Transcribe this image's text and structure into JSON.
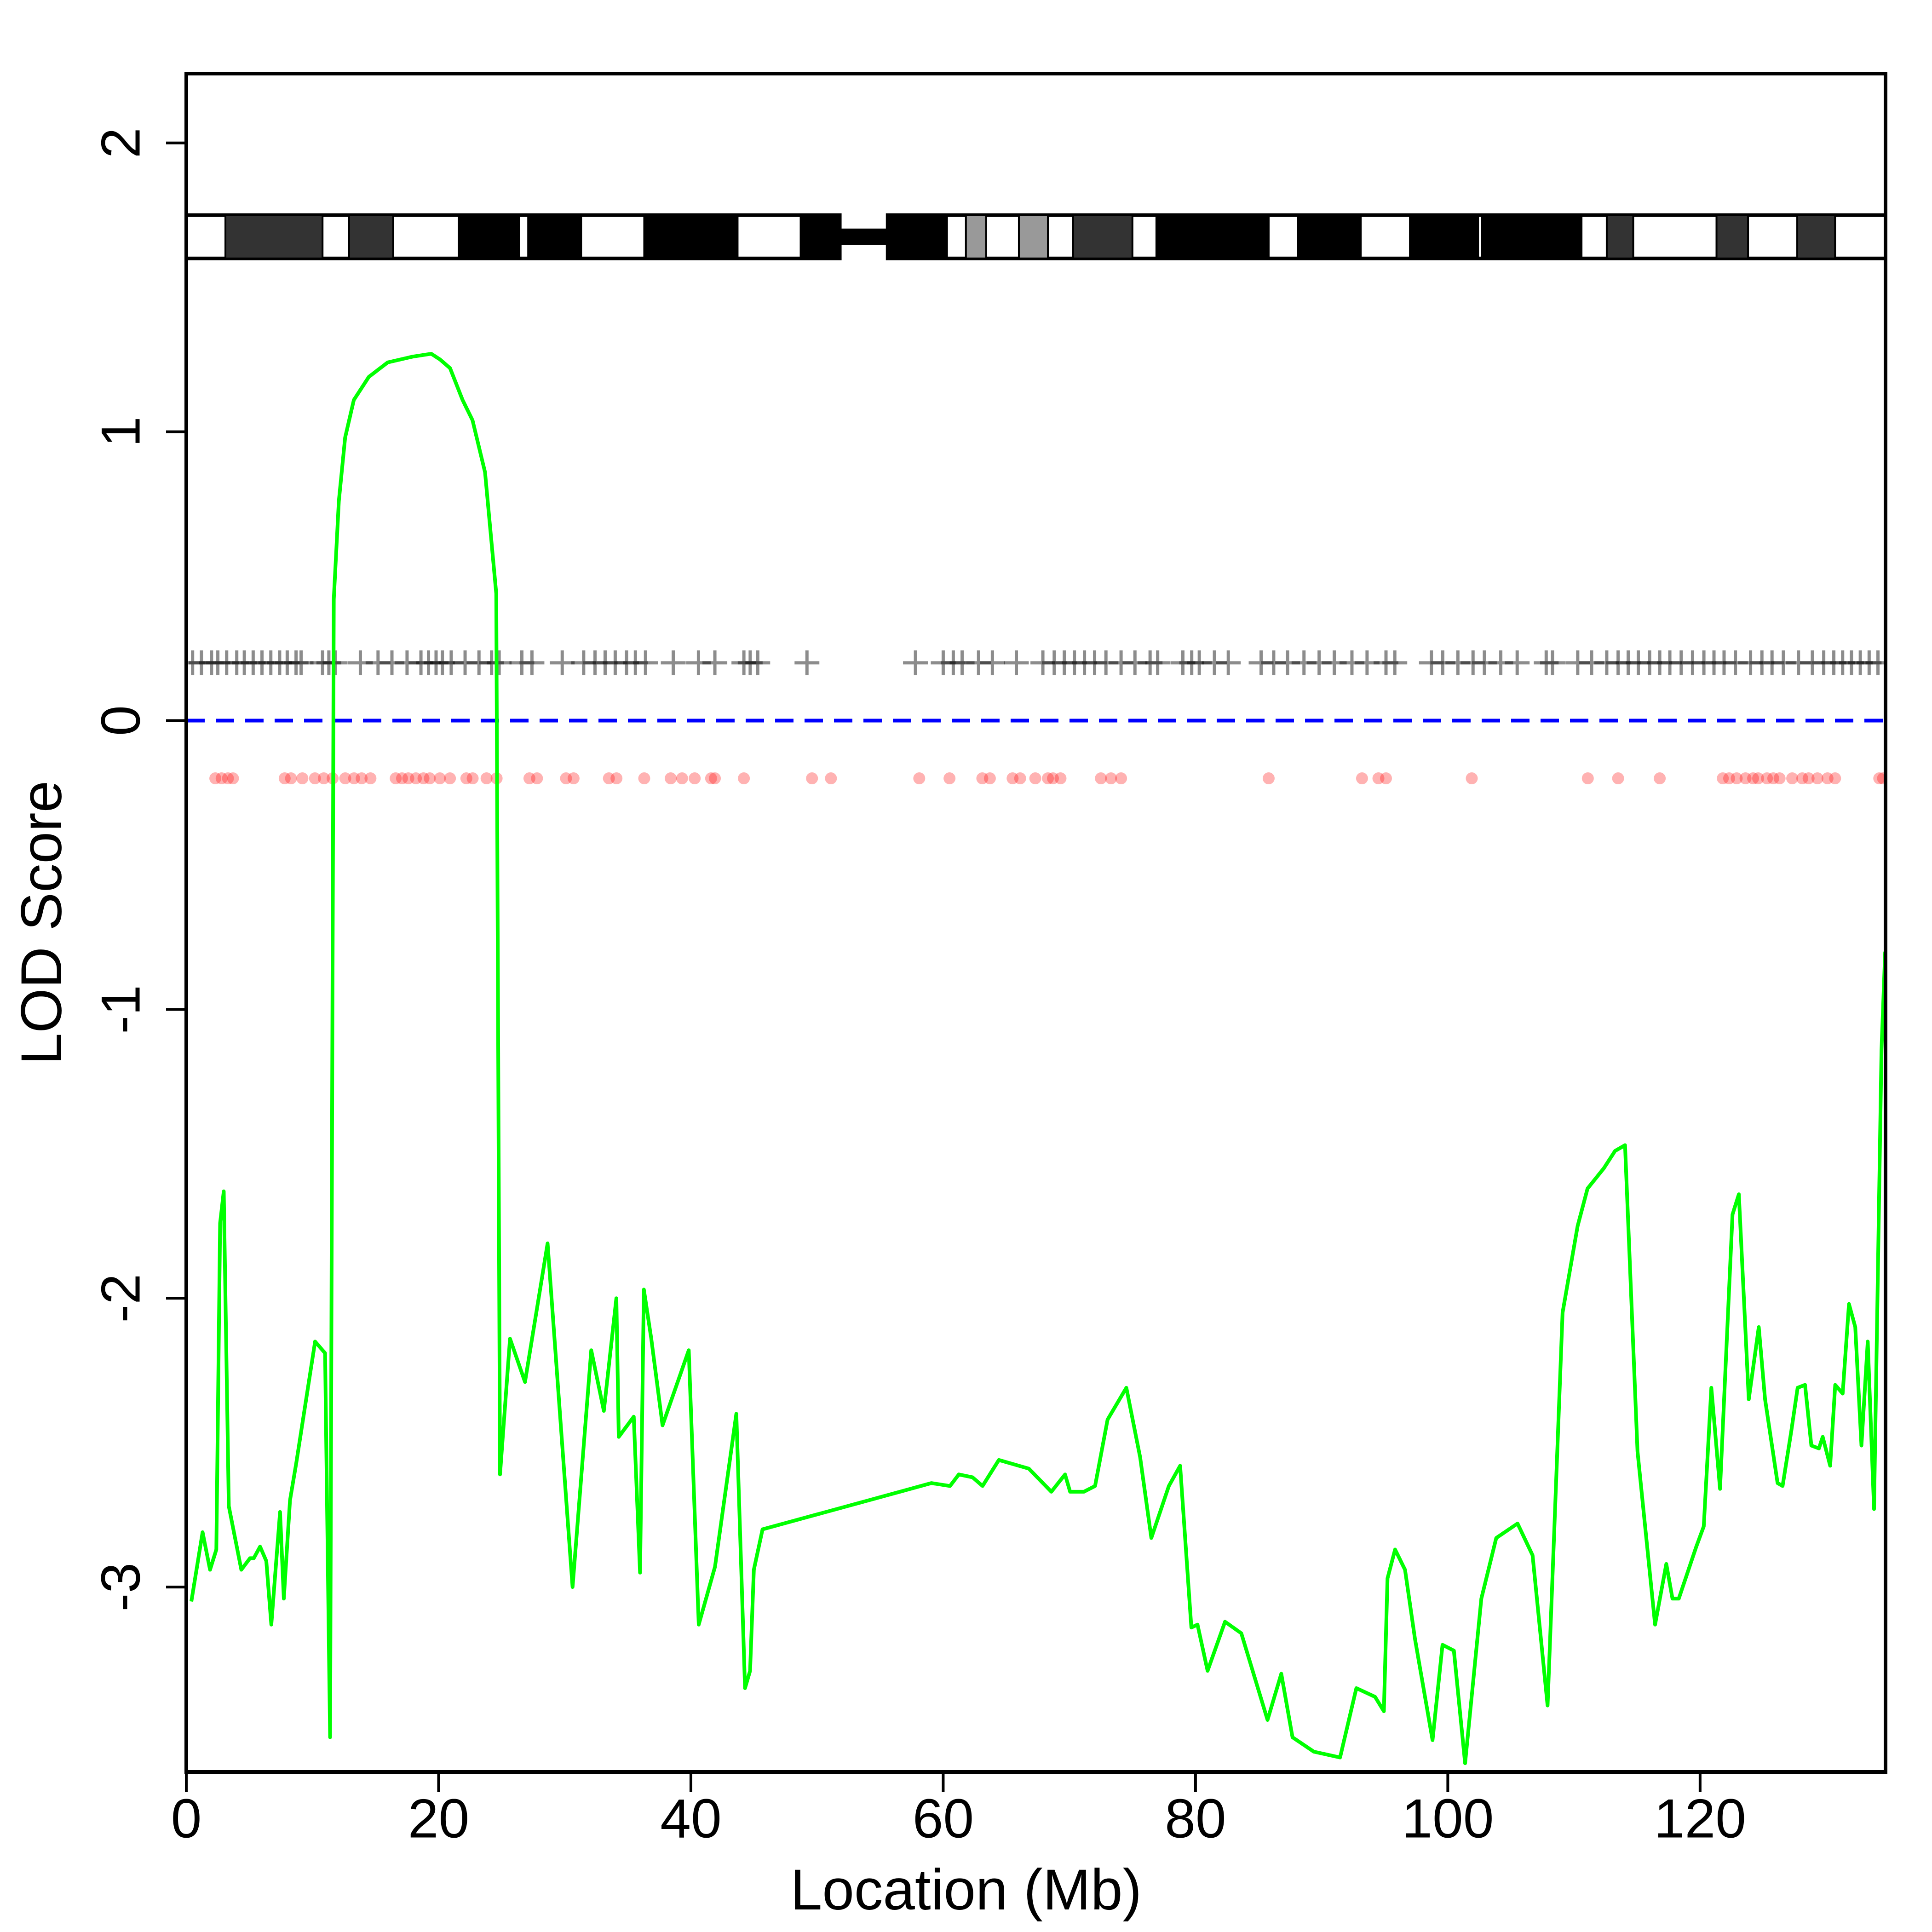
{
  "chart_data": {
    "type": "line",
    "x_label": "Location (Mb)",
    "y_label": "LOD Score",
    "xlim": [
      0,
      134.7
    ],
    "ylim": [
      -3.64,
      2.24
    ],
    "xticks": [
      0,
      20,
      40,
      60,
      80,
      100,
      120
    ],
    "yticks": [
      -3,
      -2,
      -1,
      0,
      1,
      2
    ],
    "reference_line": {
      "y": 0,
      "color": "#0000ff"
    },
    "ideogram": {
      "ylim": [
        1.6,
        1.75
      ],
      "centromere": [
        51.8,
        55.6
      ]
    },
    "bands": [
      {
        "start": 3.1,
        "end": 10.8,
        "color": "#333333"
      },
      {
        "start": 12.9,
        "end": 16.4,
        "color": "#333333"
      },
      {
        "start": 21.6,
        "end": 26.4,
        "color": "#000000"
      },
      {
        "start": 27.1,
        "end": 31.3,
        "color": "#000000"
      },
      {
        "start": 36.3,
        "end": 43.7,
        "color": "#000000"
      },
      {
        "start": 48.7,
        "end": 51.8,
        "color": "#000000"
      },
      {
        "start": 55.6,
        "end": 60.3,
        "color": "#000000"
      },
      {
        "start": 61.8,
        "end": 63.4,
        "color": "#999999"
      },
      {
        "start": 66.0,
        "end": 68.3,
        "color": "#999999"
      },
      {
        "start": 70.3,
        "end": 75.0,
        "color": "#333333"
      },
      {
        "start": 76.9,
        "end": 85.8,
        "color": "#000000"
      },
      {
        "start": 88.1,
        "end": 93.1,
        "color": "#000000"
      },
      {
        "start": 97.0,
        "end": 102.4,
        "color": "#000000"
      },
      {
        "start": 102.7,
        "end": 110.6,
        "color": "#000000"
      },
      {
        "start": 112.6,
        "end": 114.7,
        "color": "#333333"
      },
      {
        "start": 121.3,
        "end": 123.8,
        "color": "#333333"
      },
      {
        "start": 127.7,
        "end": 130.7,
        "color": "#333333"
      }
    ],
    "markers": {
      "y": 0.2,
      "color": "#000000",
      "positions": [
        0.5,
        1.2,
        2,
        2.5,
        3.2,
        4,
        4.6,
        5.3,
        6,
        6.7,
        7.4,
        8,
        8.7,
        9.1,
        10.8,
        11.3,
        11.8,
        13.8,
        15.2,
        16.3,
        17.5,
        18.6,
        19.2,
        19.8,
        20.3,
        21,
        22.1,
        23.2,
        24.2,
        24.8,
        26.6,
        27.4,
        29.8,
        31.5,
        32.4,
        33.2,
        34,
        34.9,
        35.6,
        36.4,
        38.6,
        40.6,
        41.9,
        44.2,
        44.7,
        45.3,
        49.2,
        57.8,
        60,
        60.8,
        61.5,
        62.8,
        63.9,
        65.8,
        67.9,
        68.8,
        69.6,
        70.4,
        71.2,
        72,
        72.9,
        74.1,
        75.2,
        76.4,
        77,
        79,
        79.7,
        80.3,
        81.5,
        82.6,
        85.2,
        86.2,
        87.3,
        88.6,
        89.8,
        91,
        92.4,
        93.6,
        95.1,
        95.8,
        98.7,
        99.6,
        100.8,
        102,
        102.9,
        104.2,
        105.5,
        107.8,
        108.3,
        110.3,
        111.4,
        112.6,
        113.5,
        114.3,
        115.1,
        116,
        116.8,
        117.6,
        118.5,
        119.4,
        120.3,
        121.1,
        121.9,
        122.8,
        124,
        124.9,
        125.7,
        126.6,
        127.8,
        128.9,
        129.8,
        130.6,
        131.3,
        132,
        132.7,
        133.4,
        134.1
      ]
    },
    "snps": {
      "y": -0.2,
      "color": "#ff0000",
      "positions": [
        2.3,
        2.8,
        3.3,
        3.7,
        7.8,
        8.3,
        9.2,
        10.2,
        10.9,
        11.6,
        12.6,
        13.3,
        13.9,
        14.6,
        16.6,
        17.1,
        17.6,
        18.2,
        18.8,
        19.3,
        20.1,
        20.9,
        22.2,
        22.7,
        23.8,
        24.6,
        27.2,
        27.8,
        30.1,
        30.7,
        33.5,
        34.1,
        36.3,
        38.4,
        39.3,
        40.3,
        41.6,
        41.9,
        44.2,
        49.6,
        51.1,
        58.1,
        60.5,
        63.1,
        63.7,
        65.5,
        66.1,
        67.3,
        68.3,
        68.7,
        69.3,
        72.5,
        73.3,
        74.1,
        85.8,
        93.2,
        94.5,
        95.1,
        101.9,
        111.1,
        113.5,
        116.8,
        121.8,
        122.3,
        122.9,
        123.6,
        124.2,
        124.6,
        125.3,
        125.8,
        126.3,
        127.3,
        128.1,
        128.6,
        129.3,
        130.1,
        130.7,
        134.2,
        134.5
      ]
    },
    "x": [
      0.4,
      1.29,
      1.88,
      2.38,
      2.68,
      2.97,
      3.37,
      4.36,
      5.05,
      5.35,
      5.85,
      6.34,
      6.74,
      7.43,
      7.73,
      8.22,
      8.72,
      10.21,
      11.0,
      11.4,
      11.69,
      12.09,
      12.59,
      13.28,
      14.47,
      15.96,
      17.94,
      19.42,
      20.12,
      20.91,
      21.9,
      22.69,
      23.68,
      24.57,
      24.87,
      25.66,
      26.85,
      28.64,
      30.62,
      32.1,
      33.1,
      34.09,
      34.28,
      35.47,
      35.97,
      36.27,
      36.86,
      37.75,
      39.83,
      40.62,
      41.91,
      43.6,
      44.29,
      44.69,
      44.99,
      45.68,
      56.58,
      59.06,
      60.54,
      61.24,
      62.33,
      63.12,
      64.41,
      66.79,
      68.57,
      69.66,
      70.06,
      71.15,
      72.04,
      73.03,
      74.52,
      75.61,
      76.5,
      77.89,
      78.78,
      79.67,
      80.16,
      80.96,
      82.34,
      83.63,
      85.71,
      86.8,
      87.69,
      89.38,
      91.46,
      92.75,
      94.23,
      94.93,
      95.22,
      95.82,
      96.61,
      97.4,
      98.79,
      99.58,
      100.48,
      101.37,
      102.66,
      103.84,
      105.53,
      106.72,
      107.91,
      109.1,
      110.29,
      111.08,
      112.37,
      113.26,
      114.05,
      115.04,
      116.43,
      117.32,
      117.81,
      118.31,
      119.7,
      120.29,
      120.89,
      121.58,
      122.57,
      123.07,
      123.86,
      124.65,
      125.15,
      126.14,
      126.54,
      127.23,
      127.73,
      128.32,
      128.82,
      129.42,
      129.72,
      130.31,
      130.71,
      131.3,
      131.8,
      132.3,
      132.79,
      133.29,
      133.79,
      134.38,
      134.67
    ],
    "series": [
      {
        "color": "#00ff00",
        "values": [
          -3.05,
          -2.81,
          -2.94,
          -2.87,
          -1.74,
          -1.63,
          -2.72,
          -2.94,
          -2.9,
          -2.9,
          -2.86,
          -2.91,
          -3.13,
          -2.74,
          -3.04,
          -2.7,
          -2.57,
          -2.15,
          -2.19,
          -3.52,
          0.42,
          0.76,
          0.98,
          1.11,
          1.19,
          1.24,
          1.26,
          1.27,
          1.25,
          1.22,
          1.11,
          1.04,
          0.86,
          0.44,
          -2.61,
          -2.14,
          -2.29,
          -1.81,
          -3.0,
          -2.18,
          -2.39,
          -2.0,
          -2.48,
          -2.41,
          -2.95,
          -1.97,
          -2.14,
          -2.44,
          -2.18,
          -3.13,
          -2.93,
          -2.4,
          -3.35,
          -3.29,
          -2.94,
          -2.8,
          -2.67,
          -2.64,
          -2.65,
          -2.61,
          -2.62,
          -2.65,
          -2.56,
          -2.59,
          -2.67,
          -2.61,
          -2.67,
          -2.67,
          -2.65,
          -2.42,
          -2.31,
          -2.55,
          -2.83,
          -2.65,
          -2.58,
          -3.14,
          -3.13,
          -3.29,
          -3.12,
          -3.16,
          -3.46,
          -3.3,
          -3.52,
          -3.57,
          -3.59,
          -3.35,
          -3.38,
          -3.43,
          -2.97,
          -2.87,
          -2.94,
          -3.18,
          -3.53,
          -3.2,
          -3.22,
          -3.61,
          -3.04,
          -2.83,
          -2.78,
          -2.89,
          -3.41,
          -2.05,
          -1.75,
          -1.62,
          -1.55,
          -1.49,
          -1.47,
          -2.53,
          -3.13,
          -2.92,
          -3.04,
          -3.04,
          -2.86,
          -2.79,
          -2.31,
          -2.66,
          -1.71,
          -1.64,
          -2.35,
          -2.1,
          -2.35,
          -2.64,
          -2.65,
          -2.46,
          -2.31,
          -2.3,
          -2.51,
          -2.52,
          -2.48,
          -2.58,
          -2.3,
          -2.33,
          -2.02,
          -2.1,
          -2.51,
          -2.15,
          -2.73,
          -1.14,
          -0.8
        ]
      }
    ]
  }
}
